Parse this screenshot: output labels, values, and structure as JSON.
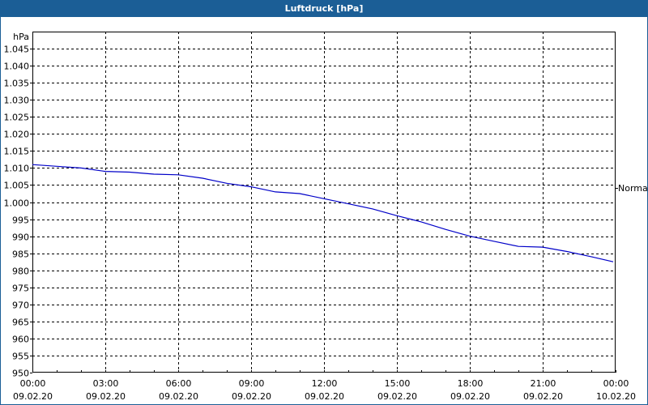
{
  "window": {
    "title": "Luftdruck [hPa]"
  },
  "colors": {
    "titlebar": "#1b5e96",
    "series": "#0000c8",
    "grid": "#000000"
  },
  "chart_data": {
    "type": "line",
    "title": "Luftdruck [hPa]",
    "xlabel": "",
    "ylabel": "hPa",
    "ylim": [
      950,
      1050
    ],
    "grid": true,
    "legend": {
      "position": "right",
      "entries": [
        "Normal"
      ]
    },
    "yticks": [
      "1.045",
      "1.040",
      "1.035",
      "1.030",
      "1.025",
      "1.020",
      "1.015",
      "1.010",
      "1.005",
      "1.000",
      "995",
      "990",
      "985",
      "980",
      "975",
      "970",
      "965",
      "960",
      "955",
      "950"
    ],
    "xticks": [
      {
        "time": "00:00",
        "date": "09.02.20"
      },
      {
        "time": "03:00",
        "date": "09.02.20"
      },
      {
        "time": "06:00",
        "date": "09.02.20"
      },
      {
        "time": "09:00",
        "date": "09.02.20"
      },
      {
        "time": "12:00",
        "date": "09.02.20"
      },
      {
        "time": "15:00",
        "date": "09.02.20"
      },
      {
        "time": "18:00",
        "date": "09.02.20"
      },
      {
        "time": "21:00",
        "date": "09.02.20"
      },
      {
        "time": "00:00",
        "date": "10.02.20"
      }
    ],
    "series": [
      {
        "name": "Normal",
        "x_hours": [
          0,
          1,
          2,
          3,
          4,
          5,
          6,
          7,
          8,
          9,
          10,
          11,
          12,
          13,
          14,
          15,
          16,
          17,
          18,
          19,
          20,
          21,
          22,
          23,
          23.9
        ],
        "values": [
          1011,
          1010.5,
          1010,
          1009,
          1008.8,
          1008.2,
          1008,
          1007,
          1005.5,
          1004.5,
          1003,
          1002.5,
          1001,
          999.5,
          998,
          996,
          994.2,
          992,
          990,
          988.5,
          987,
          986.8,
          985.5,
          984,
          982.5
        ]
      }
    ]
  }
}
